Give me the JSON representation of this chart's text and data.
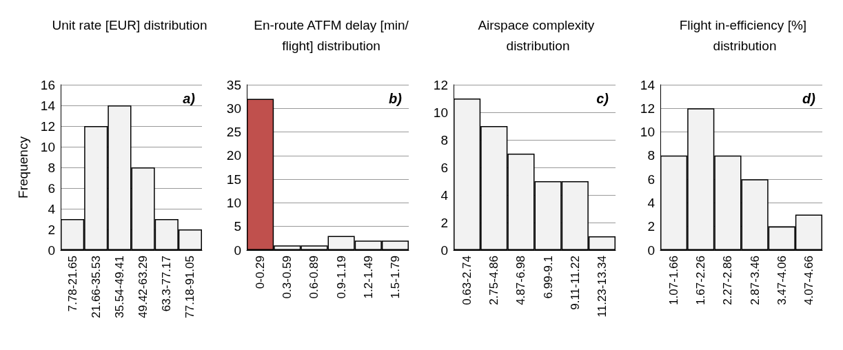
{
  "chart_data": [
    {
      "type": "bar",
      "title": "Unit rate [EUR] distribution",
      "ylabel": "Frequency",
      "annotations": [
        "a)"
      ],
      "categories": [
        "7.78-21.65",
        "21.66-35.53",
        "35.54-49.41",
        "49.42-63.29",
        "63.3-77.17",
        "77.18-91.05"
      ],
      "values": [
        3,
        12,
        14,
        8,
        3,
        2
      ],
      "color": "#f2f2f2",
      "ylim": [
        0,
        16
      ],
      "yticks": [
        0,
        2,
        4,
        6,
        8,
        10,
        12,
        14,
        16
      ],
      "grid": "y"
    },
    {
      "type": "bar",
      "title": "En-route ATFM delay [min/flight] distribution",
      "annotations": [
        "b)"
      ],
      "categories": [
        "0-0.29",
        "0.3-0.59",
        "0.6-0.89",
        "0.9-1.19",
        "1.2-1.49",
        "1.5-1.79"
      ],
      "values": [
        32,
        1,
        1,
        3,
        2,
        2
      ],
      "colors": [
        "#c0504d",
        "#f2f2f2",
        "#f2f2f2",
        "#f2f2f2",
        "#f2f2f2",
        "#f2f2f2"
      ],
      "ylim": [
        0,
        35
      ],
      "yticks": [
        0,
        5,
        10,
        15,
        20,
        25,
        30,
        35
      ],
      "grid": "y"
    },
    {
      "type": "bar",
      "title": "Airspace complexity distribution",
      "annotations": [
        "c)"
      ],
      "categories": [
        "0.63-2.74",
        "2.75-4.86",
        "4.87-6.98",
        "6.99-9.1",
        "9.11-11.22",
        "11.23-13.34"
      ],
      "values": [
        11,
        9,
        7,
        5,
        5,
        1
      ],
      "color": "#f2f2f2",
      "ylim": [
        0,
        12
      ],
      "yticks": [
        0,
        2,
        4,
        6,
        8,
        10,
        12
      ],
      "grid": "y"
    },
    {
      "type": "bar",
      "title": "Flight in-efficiency [%] distribution",
      "annotations": [
        "d)"
      ],
      "categories": [
        "1.07-1.66",
        "1.67-2.26",
        "2.27-2.86",
        "2.87-3.46",
        "3.47-4.06",
        "4.07-4.66"
      ],
      "values": [
        8,
        12,
        8,
        6,
        2,
        3
      ],
      "color": "#f2f2f2",
      "ylim": [
        0,
        14
      ],
      "yticks": [
        0,
        2,
        4,
        6,
        8,
        10,
        12,
        14
      ],
      "grid": "y"
    }
  ]
}
